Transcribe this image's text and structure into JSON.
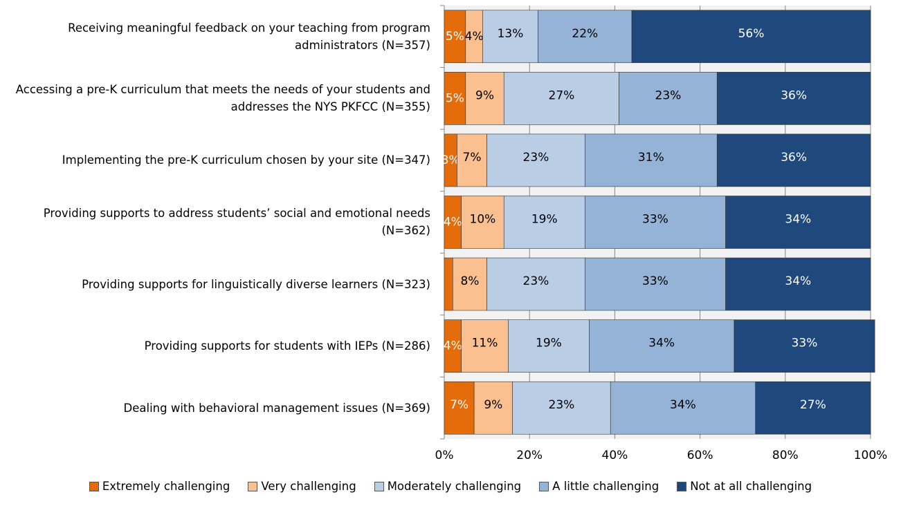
{
  "chart_data": {
    "type": "stacked_barh",
    "categories": [
      "Receiving meaningful feedback on your teaching from program administrators (N=357)",
      "Accessing a pre-K curriculum that meets the needs of your students and addresses the NYS PKFCC (N=355)",
      "Implementing the pre-K curriculum chosen  by your site (N=347)",
      "Providing supports to address students’ social and emotional needs (N=362)",
      "Providing supports for linguistically diverse learners (N=323)",
      "Providing supports for students with IEPs (N=286)",
      "Dealing with behavioral management issues (N=369)"
    ],
    "series": [
      {
        "name": "Extremely challenging",
        "color": "#e46c0a",
        "values": [
          5,
          5,
          3,
          4,
          2,
          4,
          7
        ],
        "value_labels": [
          "5%",
          "5%",
          "3%",
          "4%",
          null,
          "4%",
          "7%"
        ]
      },
      {
        "name": "Very challenging",
        "color": "#fac090",
        "values": [
          4,
          9,
          7,
          10,
          8,
          11,
          9
        ],
        "value_labels": [
          "4%",
          "9%",
          "7%",
          "10%",
          "8%",
          "11%",
          "9%"
        ]
      },
      {
        "name": "Moderately challenging",
        "color": "#b9cde5",
        "values": [
          13,
          27,
          23,
          19,
          23,
          19,
          23
        ],
        "value_labels": [
          "13%",
          "27%",
          "23%",
          "19%",
          "23%",
          "19%",
          "23%"
        ]
      },
      {
        "name": "A little challenging",
        "color": "#95b3d7",
        "values": [
          22,
          23,
          31,
          33,
          33,
          34,
          34
        ],
        "value_labels": [
          "22%",
          "23%",
          "31%",
          "33%",
          "33%",
          "34%",
          "34%"
        ]
      },
      {
        "name": "Not at all challenging",
        "color": "#1f497d",
        "values": [
          56,
          36,
          36,
          34,
          34,
          33,
          27
        ],
        "value_labels": [
          "56%",
          "36%",
          "36%",
          "34%",
          "34%",
          "33%",
          "27%"
        ]
      }
    ],
    "xlim": [
      0,
      100
    ],
    "xticks": [
      {
        "value": 0,
        "label": "0%"
      },
      {
        "value": 20,
        "label": "20%"
      },
      {
        "value": 40,
        "label": "40%"
      },
      {
        "value": 60,
        "label": "60%"
      },
      {
        "value": 80,
        "label": "80%"
      },
      {
        "value": 100,
        "label": "100%"
      }
    ],
    "grid": true,
    "legend": "bottom"
  }
}
